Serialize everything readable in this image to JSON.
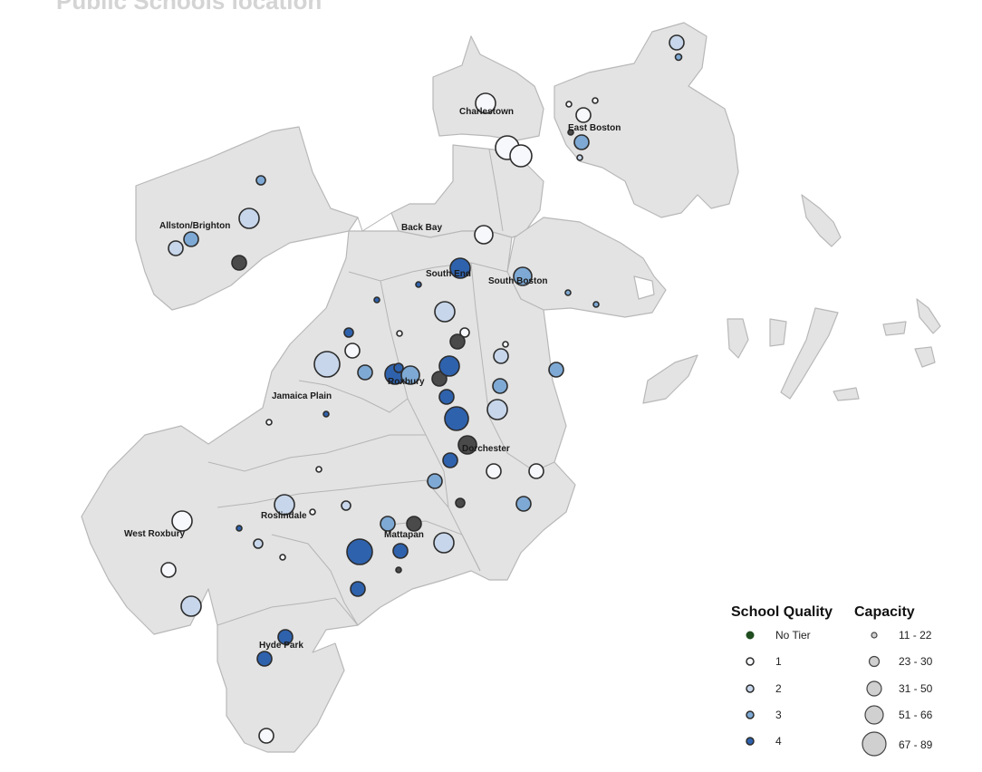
{
  "map_title": "Public Schools location",
  "places": {
    "charlestown": "Charlestown",
    "east_boston": "East Boston",
    "allston_brighton": "Allston/Brighton",
    "back_bay": "Back Bay",
    "south_end": "South End",
    "south_boston": "South Boston",
    "roxbury": "Roxbury",
    "jamaica_plain": "Jamaica Plain",
    "dorchester": "Dorchester",
    "roslindale": "Roslindale",
    "west_roxbury": "West Roxbury",
    "mattapan": "Mattapan",
    "hyde_park": "Hyde Park"
  },
  "legend": {
    "quality_title": "School Quality",
    "capacity_title": "Capacity",
    "quality_items": [
      {
        "label": "No Tier",
        "color": "#1f4d1f"
      },
      {
        "label": "1",
        "color": "#f7f8fc"
      },
      {
        "label": "2",
        "color": "#c7d6ea"
      },
      {
        "label": "3",
        "color": "#7ea9d4"
      },
      {
        "label": "4",
        "color": "#2f62ad"
      }
    ],
    "capacity_items": [
      "11 - 22",
      "23 - 30",
      "31 - 50",
      "51 - 66",
      "67 - 89"
    ]
  },
  "colors": {
    "no_tier_dark": "#4a4a4a",
    "land": "#e3e3e3",
    "border": "#b8b8b8"
  }
}
